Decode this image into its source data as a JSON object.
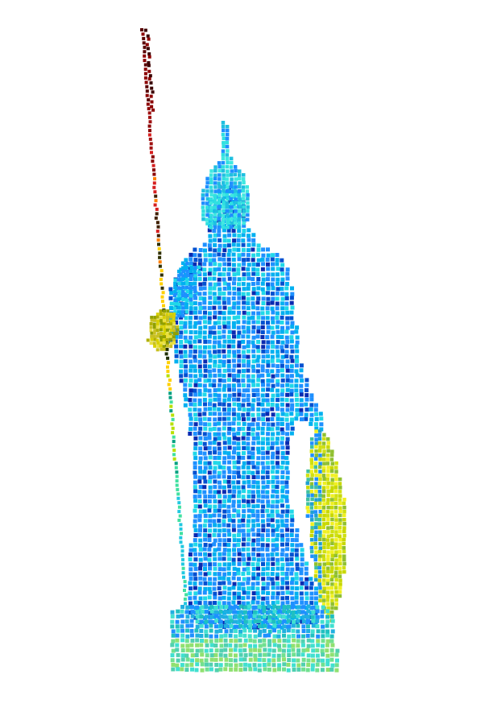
{
  "scene": {
    "subject": "voxel-rendered-statue",
    "background_color": "#ffffff",
    "colormap": [
      "#00008f",
      "#0000ff",
      "#00bfff",
      "#00ffff",
      "#7fff7f",
      "#ffff00",
      "#ff7f00",
      "#ff0000",
      "#7f0000"
    ],
    "parts": [
      {
        "name": "spear",
        "colors": [
          "#8b0000",
          "#d62020",
          "#ff7f00",
          "#ffd000",
          "#b8e000",
          "#40e0a0",
          "#20c8e0"
        ]
      },
      {
        "name": "helmet-crest",
        "colors": [
          "#30e0e0",
          "#20c0e0"
        ]
      },
      {
        "name": "body",
        "colors": [
          "#1e90ff",
          "#0050d0",
          "#00b0f0",
          "#20d8e8",
          "#0a2ab0"
        ]
      },
      {
        "name": "shield",
        "colors": [
          "#f0f020",
          "#c8d800",
          "#90c030",
          "#d0e010"
        ]
      },
      {
        "name": "pedestal",
        "colors": [
          "#40e0d0",
          "#20b0e0",
          "#70e090",
          "#20c0c0"
        ]
      }
    ]
  }
}
